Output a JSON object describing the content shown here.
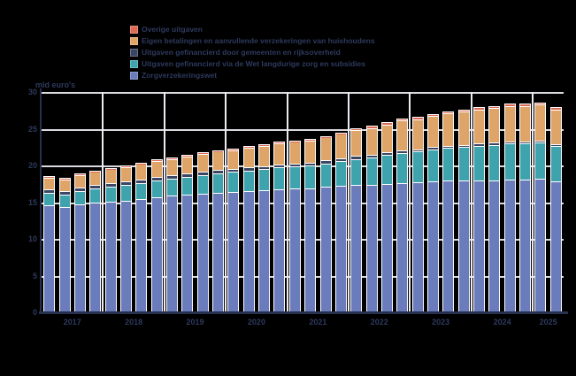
{
  "unit_label": "mld euro's",
  "colors": {
    "background": "#000000",
    "text": "#2E3A5E",
    "axis": "#26304F",
    "gridline": "#D9D9DE",
    "year_separator": "#ECECF2",
    "bar_outline": "#FFFFFF",
    "red": "#DE6A56",
    "orange": "#DFA468",
    "navy": "#3A4663",
    "teal": "#3FA3AE",
    "blue": "#6A7CBB"
  },
  "legend": [
    {
      "label": "Overige uitgaven",
      "color_key": "red"
    },
    {
      "label": "Eigen betalingen en aanvullende verzekeringen van huishoudens",
      "color_key": "orange"
    },
    {
      "label": "Uitgaven gefinancierd door gemeenten en rijksoverheid",
      "color_key": "navy"
    },
    {
      "label": "Uitgaven gefinancierd via de Wet langdurige zorg en subsidies",
      "color_key": "teal"
    },
    {
      "label": "Zorgverzekeringswet",
      "color_key": "blue"
    }
  ],
  "chart_data": {
    "type": "bar",
    "stacked": true,
    "title": "",
    "ylabel": "mld euro's",
    "xlabel": "",
    "ylim": [
      0,
      30
    ],
    "yticks": [
      0,
      5,
      10,
      15,
      20,
      25,
      30
    ],
    "grid": true,
    "legend_position": "top",
    "x_tick_labels": [
      "2017",
      "2018",
      "2019",
      "2020",
      "2021",
      "2022",
      "2023",
      "2024",
      "2025"
    ],
    "quarters_per_year": 4,
    "categories": [
      "2017-K1",
      "2017-K2",
      "2017-K3",
      "2017-K4",
      "2018-K1",
      "2018-K2",
      "2018-K3",
      "2018-K4",
      "2019-K1",
      "2019-K2",
      "2019-K3",
      "2019-K4",
      "2020-K1",
      "2020-K2",
      "2020-K3",
      "2020-K4",
      "2021-K1",
      "2021-K2",
      "2021-K3",
      "2021-K4",
      "2022-K1",
      "2022-K2",
      "2022-K3",
      "2022-K4",
      "2023-K1",
      "2023-K2",
      "2023-K3",
      "2023-K4",
      "2024-K1",
      "2024-K2",
      "2024-K3",
      "2024-K4",
      "2025-K1",
      "2025-K2"
    ],
    "series": [
      {
        "name": "Zorgverzekeringswet",
        "color_key": "blue",
        "values": [
          14.6,
          14.4,
          14.8,
          15.0,
          15.2,
          15.3,
          15.5,
          15.7,
          15.9,
          16.0,
          16.2,
          16.3,
          16.4,
          16.5,
          16.6,
          16.7,
          16.9,
          16.9,
          17.1,
          17.2,
          17.3,
          17.4,
          17.5,
          17.6,
          17.7,
          17.8,
          17.9,
          17.9,
          18.0,
          18.0,
          18.1,
          18.1,
          18.2,
          17.8
        ]
      },
      {
        "name": "Uitgaven gefinancierd via de Wet langdurige zorg en subsidies",
        "color_key": "teal",
        "values": [
          1.7,
          1.7,
          1.8,
          1.9,
          2.0,
          2.1,
          2.2,
          2.3,
          2.3,
          2.4,
          2.5,
          2.6,
          2.7,
          2.8,
          2.9,
          3.0,
          3.0,
          3.1,
          3.2,
          3.4,
          3.6,
          3.7,
          3.9,
          4.1,
          4.2,
          4.4,
          4.5,
          4.6,
          4.7,
          4.8,
          4.9,
          4.9,
          4.9,
          4.8
        ]
      },
      {
        "name": "Uitgaven gefinancierd door gemeenten en rijksoverheid",
        "color_key": "navy",
        "values": [
          0.5,
          0.5,
          0.5,
          0.5,
          0.5,
          0.5,
          0.5,
          0.5,
          0.5,
          0.5,
          0.5,
          0.5,
          0.4,
          0.4,
          0.4,
          0.4,
          0.4,
          0.4,
          0.4,
          0.4,
          0.4,
          0.4,
          0.4,
          0.4,
          0.3,
          0.3,
          0.3,
          0.3,
          0.3,
          0.3,
          0.3,
          0.3,
          0.3,
          0.3
        ]
      },
      {
        "name": "Eigen betalingen en aanvullende verzekeringen van huishoudens",
        "color_key": "orange",
        "values": [
          1.6,
          1.6,
          1.7,
          1.8,
          1.9,
          2.0,
          2.1,
          2.2,
          2.2,
          2.3,
          2.4,
          2.5,
          2.6,
          2.7,
          2.8,
          2.9,
          2.9,
          3.0,
          3.1,
          3.3,
          3.5,
          3.6,
          3.8,
          4.0,
          4.1,
          4.2,
          4.4,
          4.5,
          4.6,
          4.7,
          4.8,
          4.8,
          4.9,
          4.7
        ]
      },
      {
        "name": "Overige uitgaven",
        "color_key": "red",
        "values": [
          0.1,
          0.1,
          0.1,
          0.1,
          0.1,
          0.1,
          0.1,
          0.1,
          0.2,
          0.2,
          0.2,
          0.2,
          0.2,
          0.2,
          0.2,
          0.2,
          0.2,
          0.2,
          0.2,
          0.2,
          0.3,
          0.3,
          0.3,
          0.3,
          0.3,
          0.3,
          0.3,
          0.3,
          0.3,
          0.3,
          0.3,
          0.3,
          0.3,
          0.3
        ]
      }
    ]
  }
}
